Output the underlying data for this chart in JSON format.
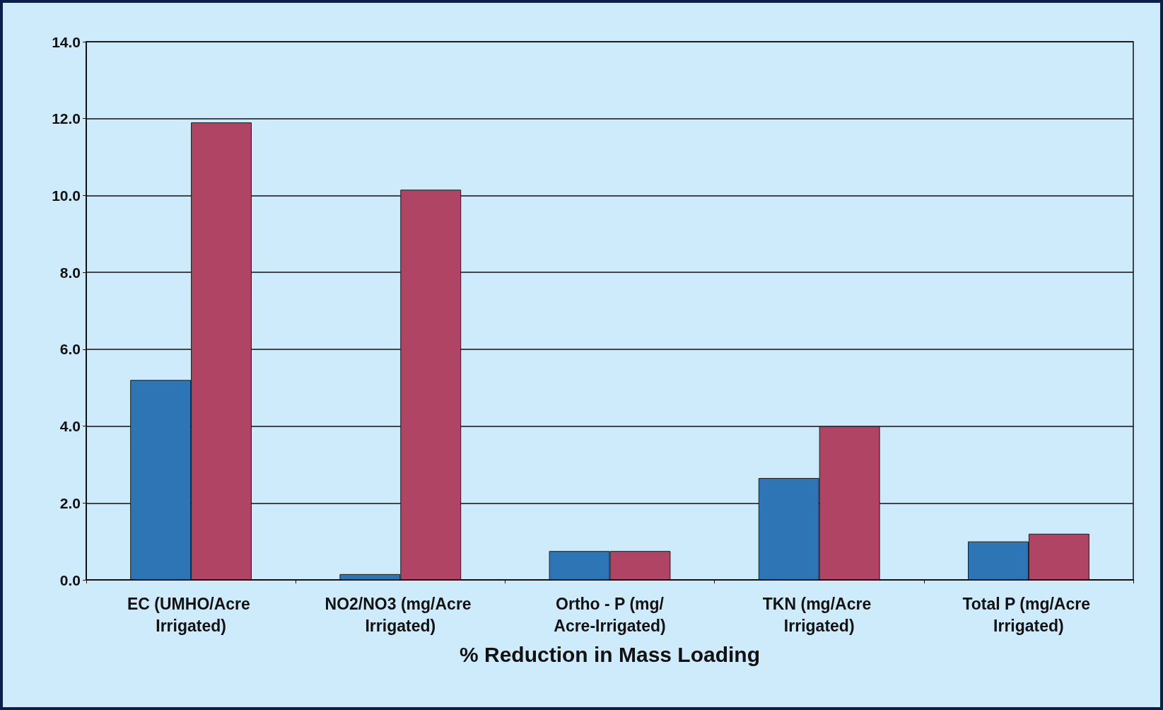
{
  "chart_data": {
    "type": "bar",
    "xlabel": "% Reduction in Mass Loading",
    "categories": [
      "EC (UMHO/Acre Irrigated)",
      "NO2/NO3 (mg/Acre Irrigated)",
      "Ortho - P (mg/Acre-Irrigated)",
      "TKN (mg/Acre Irrigated)",
      "Total P (mg/Acre Irrigated)"
    ],
    "series": [
      {
        "color": "#2e75b6",
        "values": [
          5.2,
          0.15,
          0.75,
          2.65,
          1.0
        ]
      },
      {
        "color": "#b04465",
        "values": [
          11.9,
          10.15,
          0.75,
          4.0,
          1.2
        ]
      }
    ],
    "ylim": [
      0,
      14
    ],
    "yticks": [
      {
        "value": 0,
        "label": "0.0"
      },
      {
        "value": 2,
        "label": "2.0"
      },
      {
        "value": 4,
        "label": "4.0"
      },
      {
        "value": 6,
        "label": "6.0"
      },
      {
        "value": 8,
        "label": "8.0"
      },
      {
        "value": 10,
        "label": "10.0"
      },
      {
        "value": 12,
        "label": "12.0"
      },
      {
        "value": 14,
        "label": "14.0"
      }
    ],
    "grid": "y"
  }
}
